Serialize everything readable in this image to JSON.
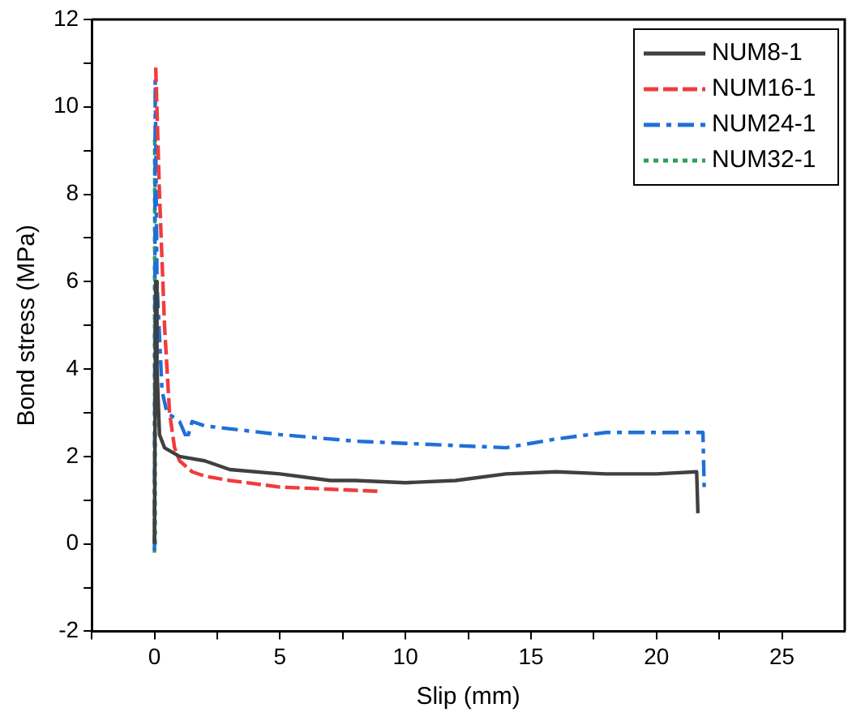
{
  "chart_data": {
    "type": "line",
    "xlabel": "Slip (mm)",
    "ylabel": "Bond stress (MPa)",
    "xlim": [
      -2.5,
      27.5
    ],
    "ylim": [
      -2,
      12
    ],
    "xticks": [
      {
        "value": -2.5,
        "label": null
      },
      0,
      {
        "value": 2.5,
        "label": null
      },
      5,
      {
        "value": 7.5,
        "label": null
      },
      10,
      {
        "value": 12.5,
        "label": null
      },
      15,
      {
        "value": 17.5,
        "label": null
      },
      20,
      {
        "value": 22.5,
        "label": null
      },
      25
    ],
    "yticks": [
      -2,
      {
        "value": -1,
        "label": null
      },
      0,
      {
        "value": 1,
        "label": null
      },
      2,
      {
        "value": 3,
        "label": null
      },
      4,
      {
        "value": 5,
        "label": null
      },
      6,
      {
        "value": 7,
        "label": null
      },
      8,
      {
        "value": 9,
        "label": null
      },
      10,
      {
        "value": 11,
        "label": null
      },
      12
    ],
    "grid": false,
    "legend": "top right",
    "marker": "none",
    "series": [
      {
        "name": "NUM8-1",
        "color": "#404040",
        "line_style": "solid",
        "x": [
          0,
          0.05,
          0.1,
          0.2,
          0.4,
          1,
          2,
          3,
          5,
          7,
          8,
          10,
          12,
          14,
          16,
          18,
          20,
          21.6,
          21.65
        ],
        "values": [
          0,
          6,
          4,
          2.5,
          2.2,
          2,
          1.9,
          1.7,
          1.6,
          1.45,
          1.45,
          1.4,
          1.45,
          1.6,
          1.65,
          1.6,
          1.6,
          1.65,
          0.7
        ]
      },
      {
        "name": "NUM16-1",
        "color": "#f03c3c",
        "line_style": "dashed",
        "x": [
          0.05,
          0.2,
          0.4,
          0.6,
          0.8,
          1,
          1.5,
          2,
          3,
          5,
          7,
          9
        ],
        "values": [
          10.9,
          8,
          5,
          3,
          2.2,
          1.9,
          1.65,
          1.55,
          1.45,
          1.3,
          1.25,
          1.2
        ]
      },
      {
        "name": "NUM24-1",
        "color": "#1f6fd8",
        "line_style": "dashdot",
        "x": [
          0,
          0.03,
          0.1,
          0.3,
          0.5,
          1,
          1.3,
          1.5,
          2,
          5,
          8,
          10,
          12,
          14,
          16,
          18,
          20,
          21.85,
          21.9
        ],
        "values": [
          -0.15,
          10.6,
          6,
          3.5,
          3,
          2.8,
          2.4,
          2.8,
          2.7,
          2.5,
          2.35,
          2.3,
          2.25,
          2.2,
          2.4,
          2.55,
          2.55,
          2.55,
          1.3
        ]
      },
      {
        "name": "NUM32-1",
        "color": "#2e9e5a",
        "line_style": "dotted",
        "x": [
          0,
          0.01,
          0.02,
          0.03
        ],
        "values": [
          -0.2,
          9.3,
          6,
          -0.1
        ]
      }
    ]
  }
}
